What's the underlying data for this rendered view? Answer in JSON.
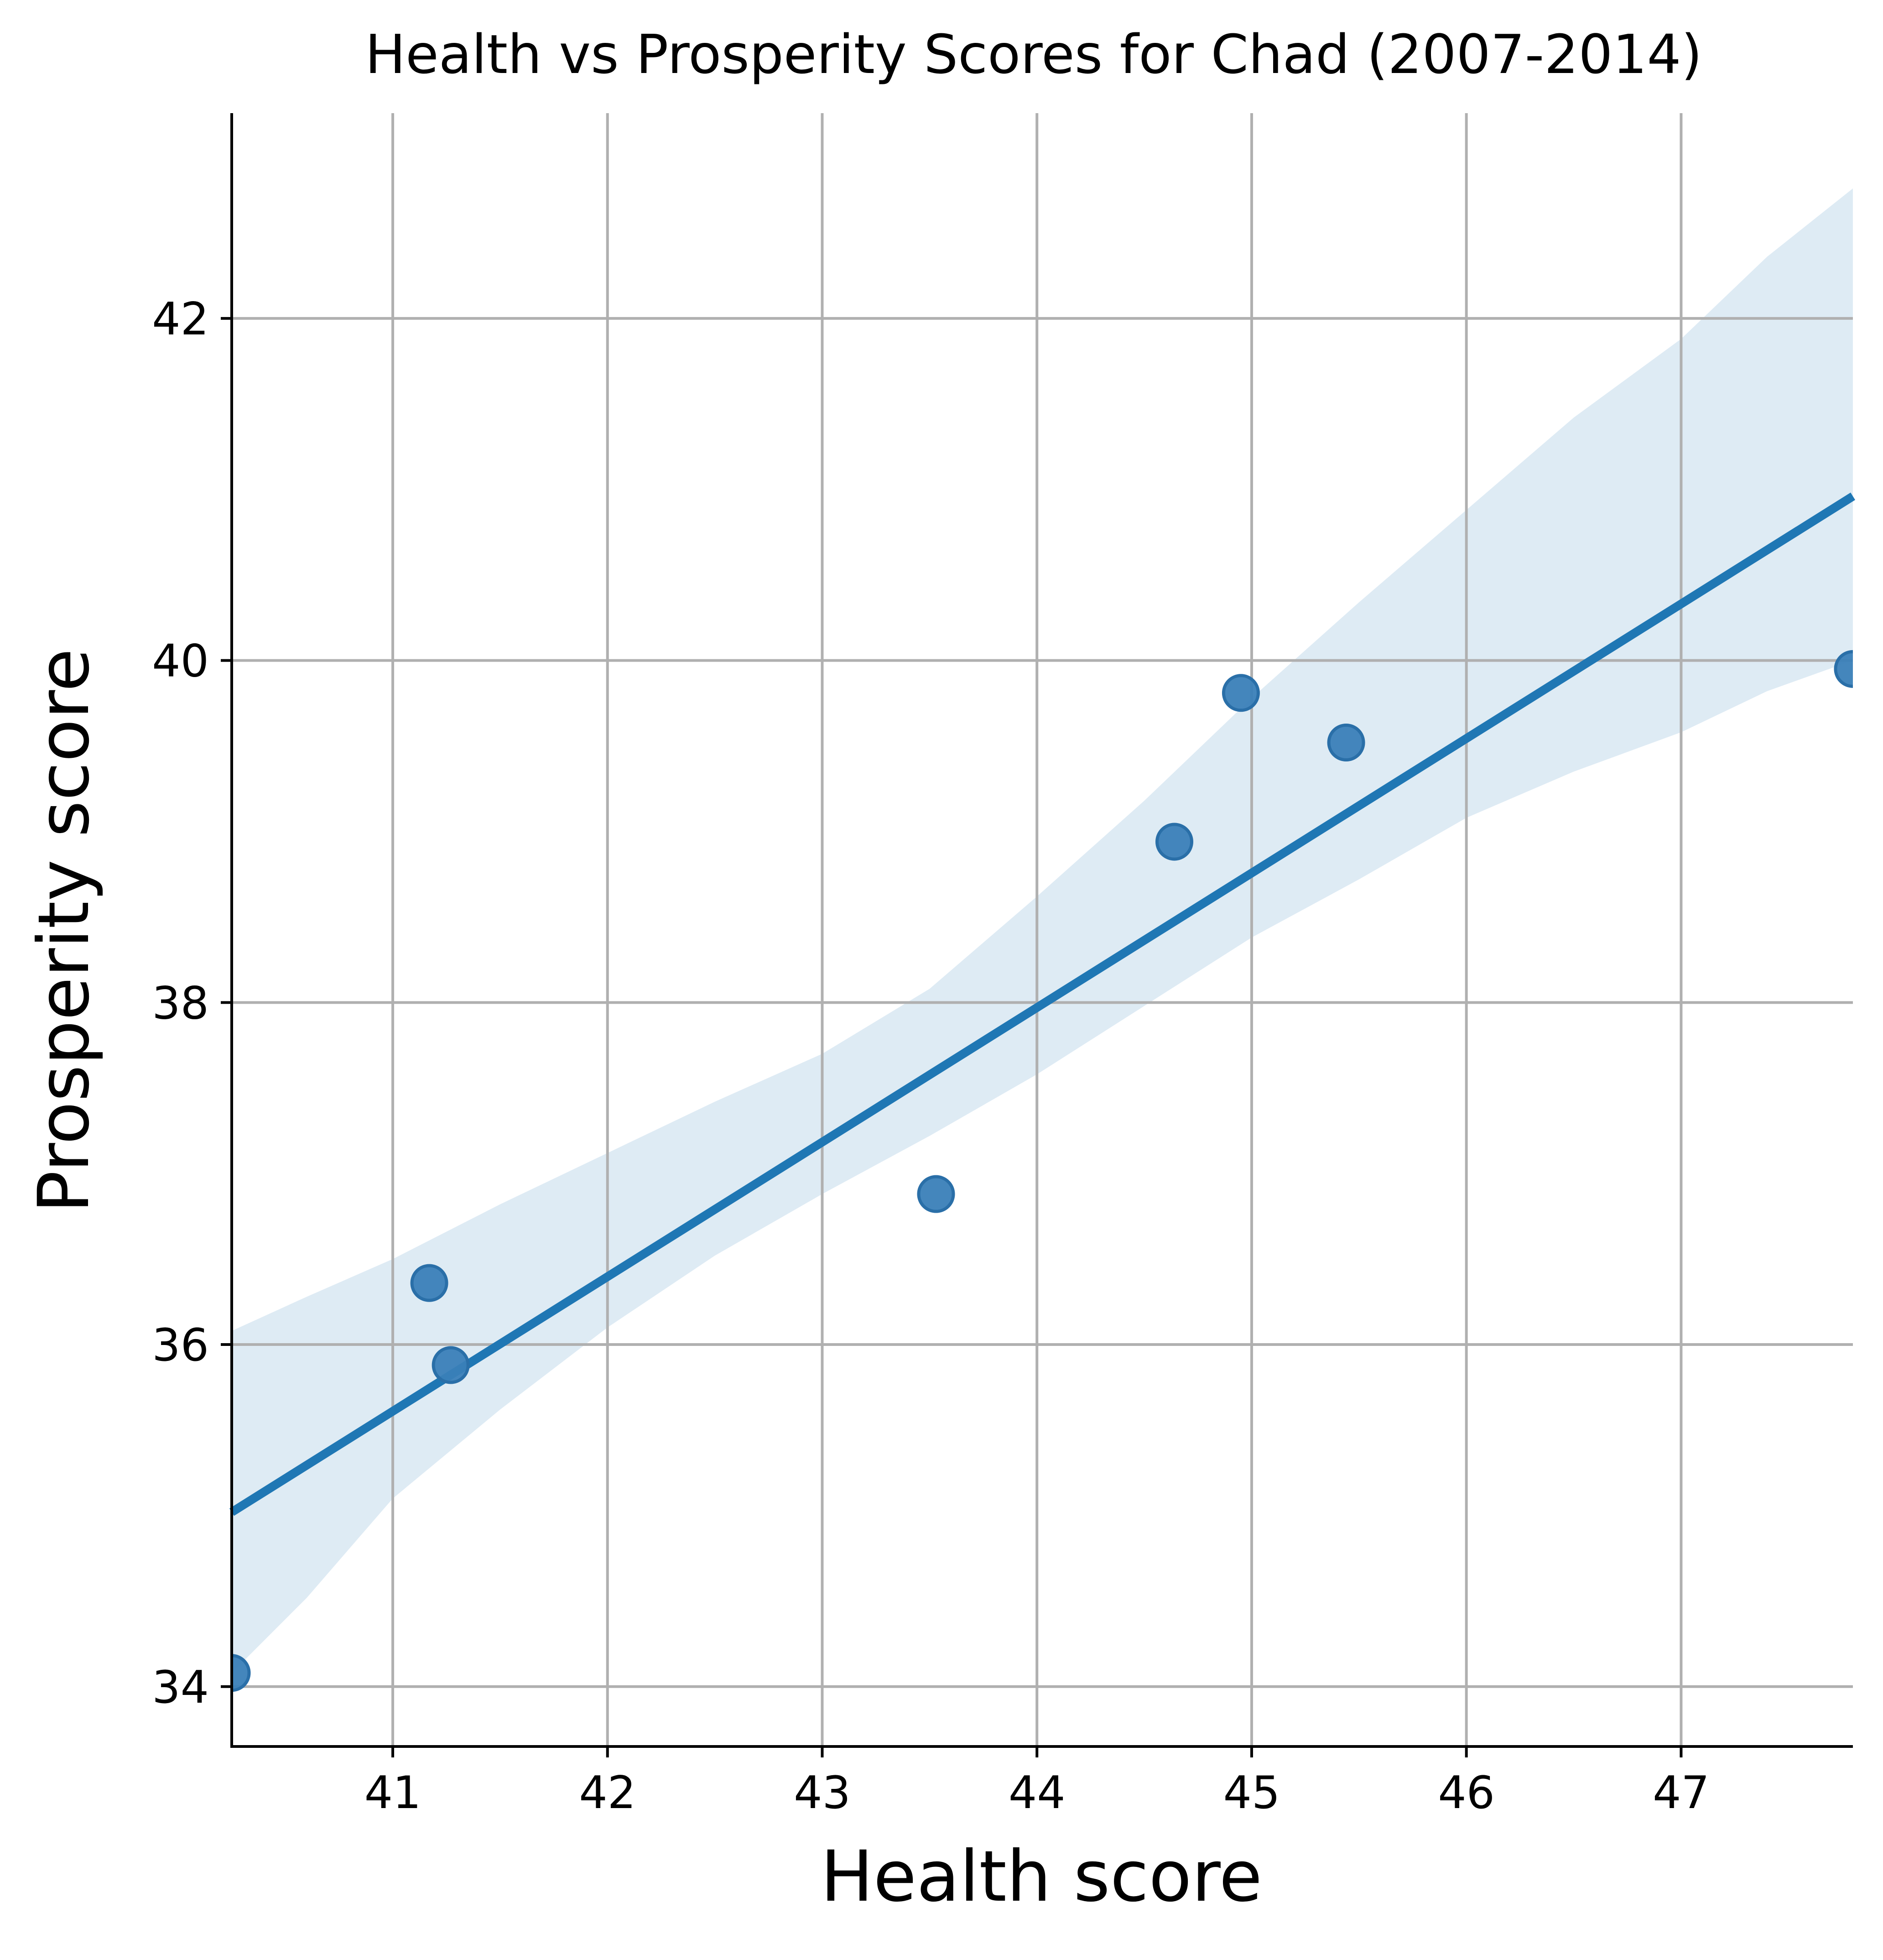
{
  "chart_data": {
    "type": "scatter",
    "title": "Health vs Prosperity Scores for Chad (2007-2014)",
    "xlabel": "Health score",
    "ylabel": "Prosperity score",
    "xlim": [
      40.25,
      47.8
    ],
    "ylim": [
      33.65,
      43.2
    ],
    "x_ticks": [
      41,
      42,
      43,
      44,
      45,
      46,
      47
    ],
    "y_ticks": [
      34,
      36,
      38,
      40,
      42
    ],
    "grid": true,
    "legend": "none",
    "points": [
      {
        "x": 40.25,
        "y": 34.08
      },
      {
        "x": 41.17,
        "y": 36.36
      },
      {
        "x": 41.27,
        "y": 35.88
      },
      {
        "x": 43.53,
        "y": 36.88
      },
      {
        "x": 44.64,
        "y": 38.94
      },
      {
        "x": 44.95,
        "y": 39.81
      },
      {
        "x": 45.44,
        "y": 39.52
      },
      {
        "x": 47.8,
        "y": 39.95
      }
    ],
    "regression_line": {
      "x": [
        40.25,
        47.8
      ],
      "y": [
        35.02,
        40.96
      ]
    },
    "confidence_band": {
      "x": [
        40.25,
        40.6,
        41.0,
        41.5,
        42.0,
        42.5,
        43.0,
        43.5,
        44.0,
        44.5,
        45.0,
        45.5,
        46.0,
        46.5,
        47.0,
        47.4,
        47.8
      ],
      "upper": [
        36.08,
        36.28,
        36.5,
        36.82,
        37.12,
        37.42,
        37.7,
        38.08,
        38.62,
        39.18,
        39.78,
        40.34,
        40.88,
        41.42,
        41.88,
        42.36,
        42.76
      ],
      "lower": [
        34.08,
        34.52,
        35.1,
        35.62,
        36.1,
        36.52,
        36.88,
        37.22,
        37.58,
        37.98,
        38.38,
        38.72,
        39.08,
        39.35,
        39.58,
        39.82,
        40.0
      ]
    },
    "colors": {
      "points": "#3a7fb8",
      "line": "#1f77b4",
      "band": "#1f77b4",
      "grid": "#b0b0b0",
      "axis": "#000000"
    }
  }
}
